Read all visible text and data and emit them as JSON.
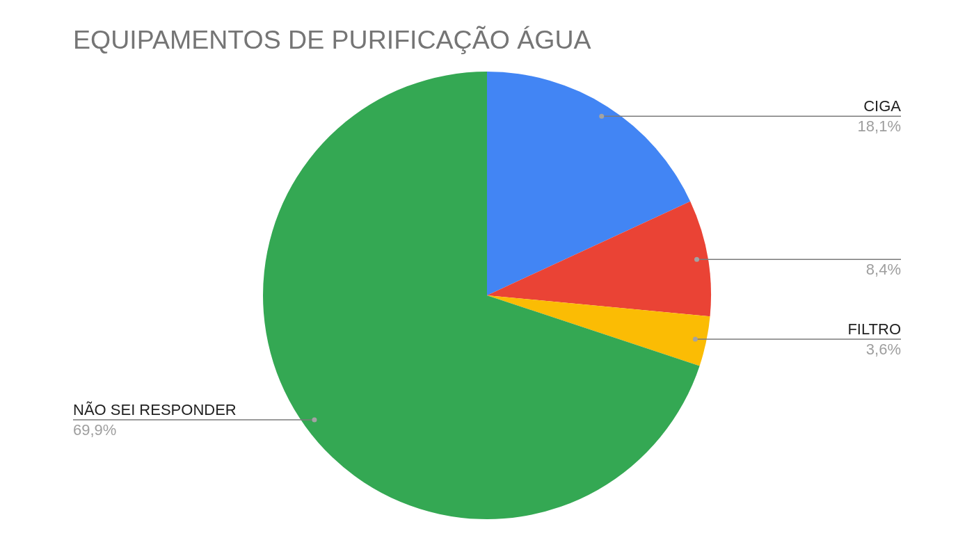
{
  "chart_data": {
    "type": "pie",
    "title": "EQUIPAMENTOS DE PURIFICAÇÃO ÁGUA",
    "categories": [
      "CIGA",
      null,
      "FILTRO",
      "NÃO SEI RESPONDER"
    ],
    "values": [
      18.1,
      8.4,
      3.6,
      69.9
    ],
    "colors": [
      "#4285f4",
      "#ea4335",
      "#fbbc04",
      "#34a853"
    ],
    "value_labels": [
      "18,1%",
      "8,4%",
      "3,6%",
      "69,9%"
    ]
  }
}
